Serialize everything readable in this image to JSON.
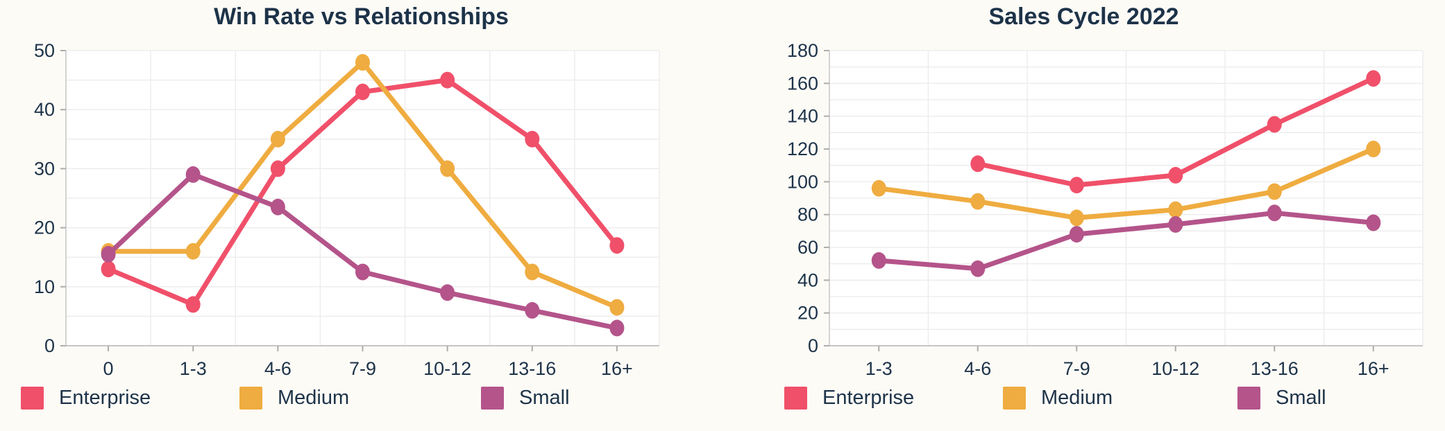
{
  "page": {
    "background_color": "#FDFBF6",
    "plot_background_color": "#FFFFFF",
    "text_color": "#1D3349",
    "grid_color": "#EDEDED",
    "axis_color": "#C6C6C6",
    "tick_color": "#ADADAD"
  },
  "chart_data": [
    {
      "type": "line",
      "title": "Win Rate vs Relationships",
      "categories": [
        "0",
        "1-3",
        "4-6",
        "7-9",
        "10-12",
        "13-16",
        "16+"
      ],
      "xlabel": "",
      "ylabel": "",
      "y_axis": {
        "min": 0,
        "max": 50,
        "label_step": 10,
        "grid_step": 5
      },
      "grid": true,
      "legend_position": "bottom",
      "series": [
        {
          "name": "Enterprise",
          "color": "#F0506A",
          "values": [
            13,
            7,
            30,
            43,
            45,
            35,
            17
          ]
        },
        {
          "name": "Medium",
          "color": "#EFAC40",
          "values": [
            16,
            16,
            35,
            48,
            30,
            12.5,
            6.5
          ]
        },
        {
          "name": "Small",
          "color": "#B4548A",
          "values": [
            15.5,
            29,
            23.5,
            12.5,
            9,
            6,
            3
          ]
        }
      ]
    },
    {
      "type": "line",
      "title": "Sales Cycle 2022",
      "categories": [
        "1-3",
        "4-6",
        "7-9",
        "10-12",
        "13-16",
        "16+"
      ],
      "xlabel": "",
      "ylabel": "",
      "y_axis": {
        "min": 0,
        "max": 180,
        "label_step": 20,
        "grid_step": 10
      },
      "grid": true,
      "legend_position": "bottom",
      "series": [
        {
          "name": "Enterprise",
          "color": "#F0506A",
          "values": [
            null,
            111,
            98,
            104,
            135,
            163
          ]
        },
        {
          "name": "Medium",
          "color": "#EFAC40",
          "values": [
            96,
            88,
            78,
            83,
            94,
            120
          ]
        },
        {
          "name": "Small",
          "color": "#B4548A",
          "values": [
            52,
            47,
            68,
            74,
            81,
            75
          ]
        }
      ]
    }
  ]
}
